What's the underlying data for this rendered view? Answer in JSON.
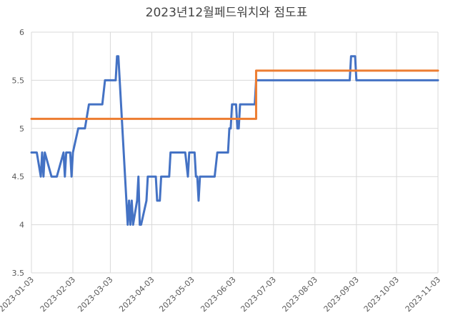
{
  "chart_data": {
    "type": "line",
    "title": "2023년12월페드워치와 점도표",
    "xlabel": "",
    "ylabel": "",
    "ylim": [
      3.5,
      6
    ],
    "yticks": [
      "3.5",
      "4",
      "4.5",
      "5",
      "5.5",
      "6"
    ],
    "xticks": [
      "2023-01-03",
      "2023-02-03",
      "2023-03-03",
      "2023-04-03",
      "2023-05-03",
      "2023-06-03",
      "2023-07-03",
      "2023-08-03",
      "2023-09-03",
      "2023-10-03",
      "2023-11-03"
    ],
    "x_range": [
      "2023-01-03",
      "2023-11-03"
    ],
    "grid": true,
    "legend": "none",
    "series": [
      {
        "color": "#4472c4",
        "points": [
          [
            "2023-01-03",
            4.75
          ],
          [
            "2023-01-07",
            4.75
          ],
          [
            "2023-01-10",
            4.5
          ],
          [
            "2023-01-11",
            4.75
          ],
          [
            "2023-01-12",
            4.5
          ],
          [
            "2023-01-13",
            4.75
          ],
          [
            "2023-01-18",
            4.5
          ],
          [
            "2023-01-22",
            4.5
          ],
          [
            "2023-01-27",
            4.75
          ],
          [
            "2023-01-28",
            4.5
          ],
          [
            "2023-01-29",
            4.75
          ],
          [
            "2023-02-01",
            4.75
          ],
          [
            "2023-02-02",
            4.5
          ],
          [
            "2023-02-03",
            4.75
          ],
          [
            "2023-02-07",
            5.0
          ],
          [
            "2023-02-12",
            5.0
          ],
          [
            "2023-02-15",
            5.25
          ],
          [
            "2023-02-25",
            5.25
          ],
          [
            "2023-02-27",
            5.5
          ],
          [
            "2023-03-07",
            5.5
          ],
          [
            "2023-03-08",
            5.75
          ],
          [
            "2023-03-09",
            5.75
          ],
          [
            "2023-03-11",
            5.25
          ],
          [
            "2023-03-13",
            4.75
          ],
          [
            "2023-03-15",
            4.25
          ],
          [
            "2023-03-16",
            4.0
          ],
          [
            "2023-03-17",
            4.25
          ],
          [
            "2023-03-18",
            4.0
          ],
          [
            "2023-03-19",
            4.25
          ],
          [
            "2023-03-20",
            4.0
          ],
          [
            "2023-03-23",
            4.25
          ],
          [
            "2023-03-24",
            4.5
          ],
          [
            "2023-03-25",
            4.0
          ],
          [
            "2023-03-26",
            4.0
          ],
          [
            "2023-03-30",
            4.25
          ],
          [
            "2023-03-31",
            4.5
          ],
          [
            "2023-04-06",
            4.5
          ],
          [
            "2023-04-07",
            4.25
          ],
          [
            "2023-04-09",
            4.25
          ],
          [
            "2023-04-10",
            4.5
          ],
          [
            "2023-04-16",
            4.5
          ],
          [
            "2023-04-17",
            4.75
          ],
          [
            "2023-04-28",
            4.75
          ],
          [
            "2023-04-30",
            4.5
          ],
          [
            "2023-05-01",
            4.75
          ],
          [
            "2023-05-05",
            4.75
          ],
          [
            "2023-05-06",
            4.5
          ],
          [
            "2023-05-07",
            4.5
          ],
          [
            "2023-05-08",
            4.25
          ],
          [
            "2023-05-09",
            4.5
          ],
          [
            "2023-05-20",
            4.5
          ],
          [
            "2023-05-22",
            4.75
          ],
          [
            "2023-05-30",
            4.75
          ],
          [
            "2023-05-31",
            5.0
          ],
          [
            "2023-06-01",
            5.0
          ],
          [
            "2023-06-02",
            5.25
          ],
          [
            "2023-06-05",
            5.25
          ],
          [
            "2023-06-06",
            5.0
          ],
          [
            "2023-06-07",
            5.0
          ],
          [
            "2023-06-08",
            5.25
          ],
          [
            "2023-06-19",
            5.25
          ],
          [
            "2023-06-20",
            5.5
          ],
          [
            "2023-08-29",
            5.5
          ],
          [
            "2023-08-30",
            5.75
          ],
          [
            "2023-09-02",
            5.75
          ],
          [
            "2023-09-03",
            5.5
          ],
          [
            "2023-11-03",
            5.5
          ]
        ]
      },
      {
        "color": "#ed7d31",
        "points": [
          [
            "2023-01-03",
            5.1
          ],
          [
            "2023-06-20",
            5.1
          ],
          [
            "2023-06-20",
            5.6
          ],
          [
            "2023-11-03",
            5.6
          ]
        ]
      }
    ]
  }
}
